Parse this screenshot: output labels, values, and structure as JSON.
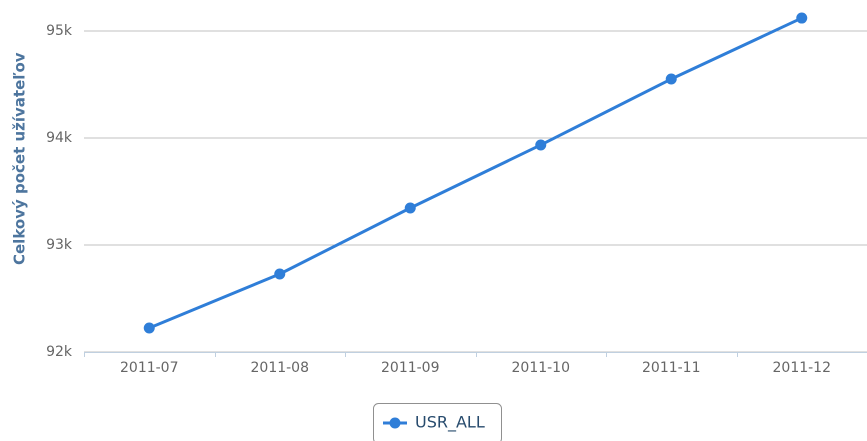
{
  "chart_data": {
    "type": "line",
    "y_axis_label": "Celkový počet užívateľov",
    "categories": [
      "2011-07",
      "2011-08",
      "2011-09",
      "2011-10",
      "2011-11",
      "2011-12"
    ],
    "series": [
      {
        "name": "USR_ALL",
        "color": "#2f7ed8",
        "values": [
          92224,
          92729,
          93346,
          93935,
          94551,
          95121
        ]
      }
    ],
    "ylim": [
      92000,
      95000
    ],
    "yticks": [
      {
        "value": 92000,
        "label": "92k"
      },
      {
        "value": 93000,
        "label": "93k"
      },
      {
        "value": 94000,
        "label": "94k"
      },
      {
        "value": 95000,
        "label": "95k"
      }
    ],
    "grid": true,
    "legend": "bottom"
  }
}
